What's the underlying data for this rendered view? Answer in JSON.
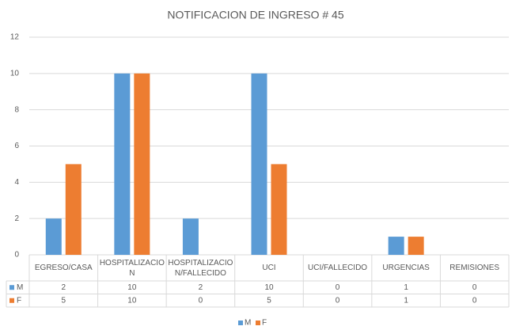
{
  "chart_data": {
    "type": "bar",
    "title": "NOTIFICACION DE INGRESO # 45",
    "categories": [
      "EGRESO/CASA",
      "HOSPITALIZACION",
      "HOSPITALIZACION/FALLECIDO",
      "UCI",
      "UCI/FALLECIDO",
      "URGENCIAS",
      "REMISIONES"
    ],
    "series": [
      {
        "name": "M",
        "color": "#5b9bd5",
        "values": [
          2,
          10,
          2,
          10,
          0,
          1,
          0
        ]
      },
      {
        "name": "F",
        "color": "#ed7d31",
        "values": [
          5,
          10,
          0,
          5,
          0,
          1,
          0
        ]
      }
    ],
    "ylim": [
      0,
      12
    ],
    "yticks": [
      0,
      2,
      4,
      6,
      8,
      10,
      12
    ],
    "grid": true,
    "legend": "bottom",
    "data_table": true
  }
}
